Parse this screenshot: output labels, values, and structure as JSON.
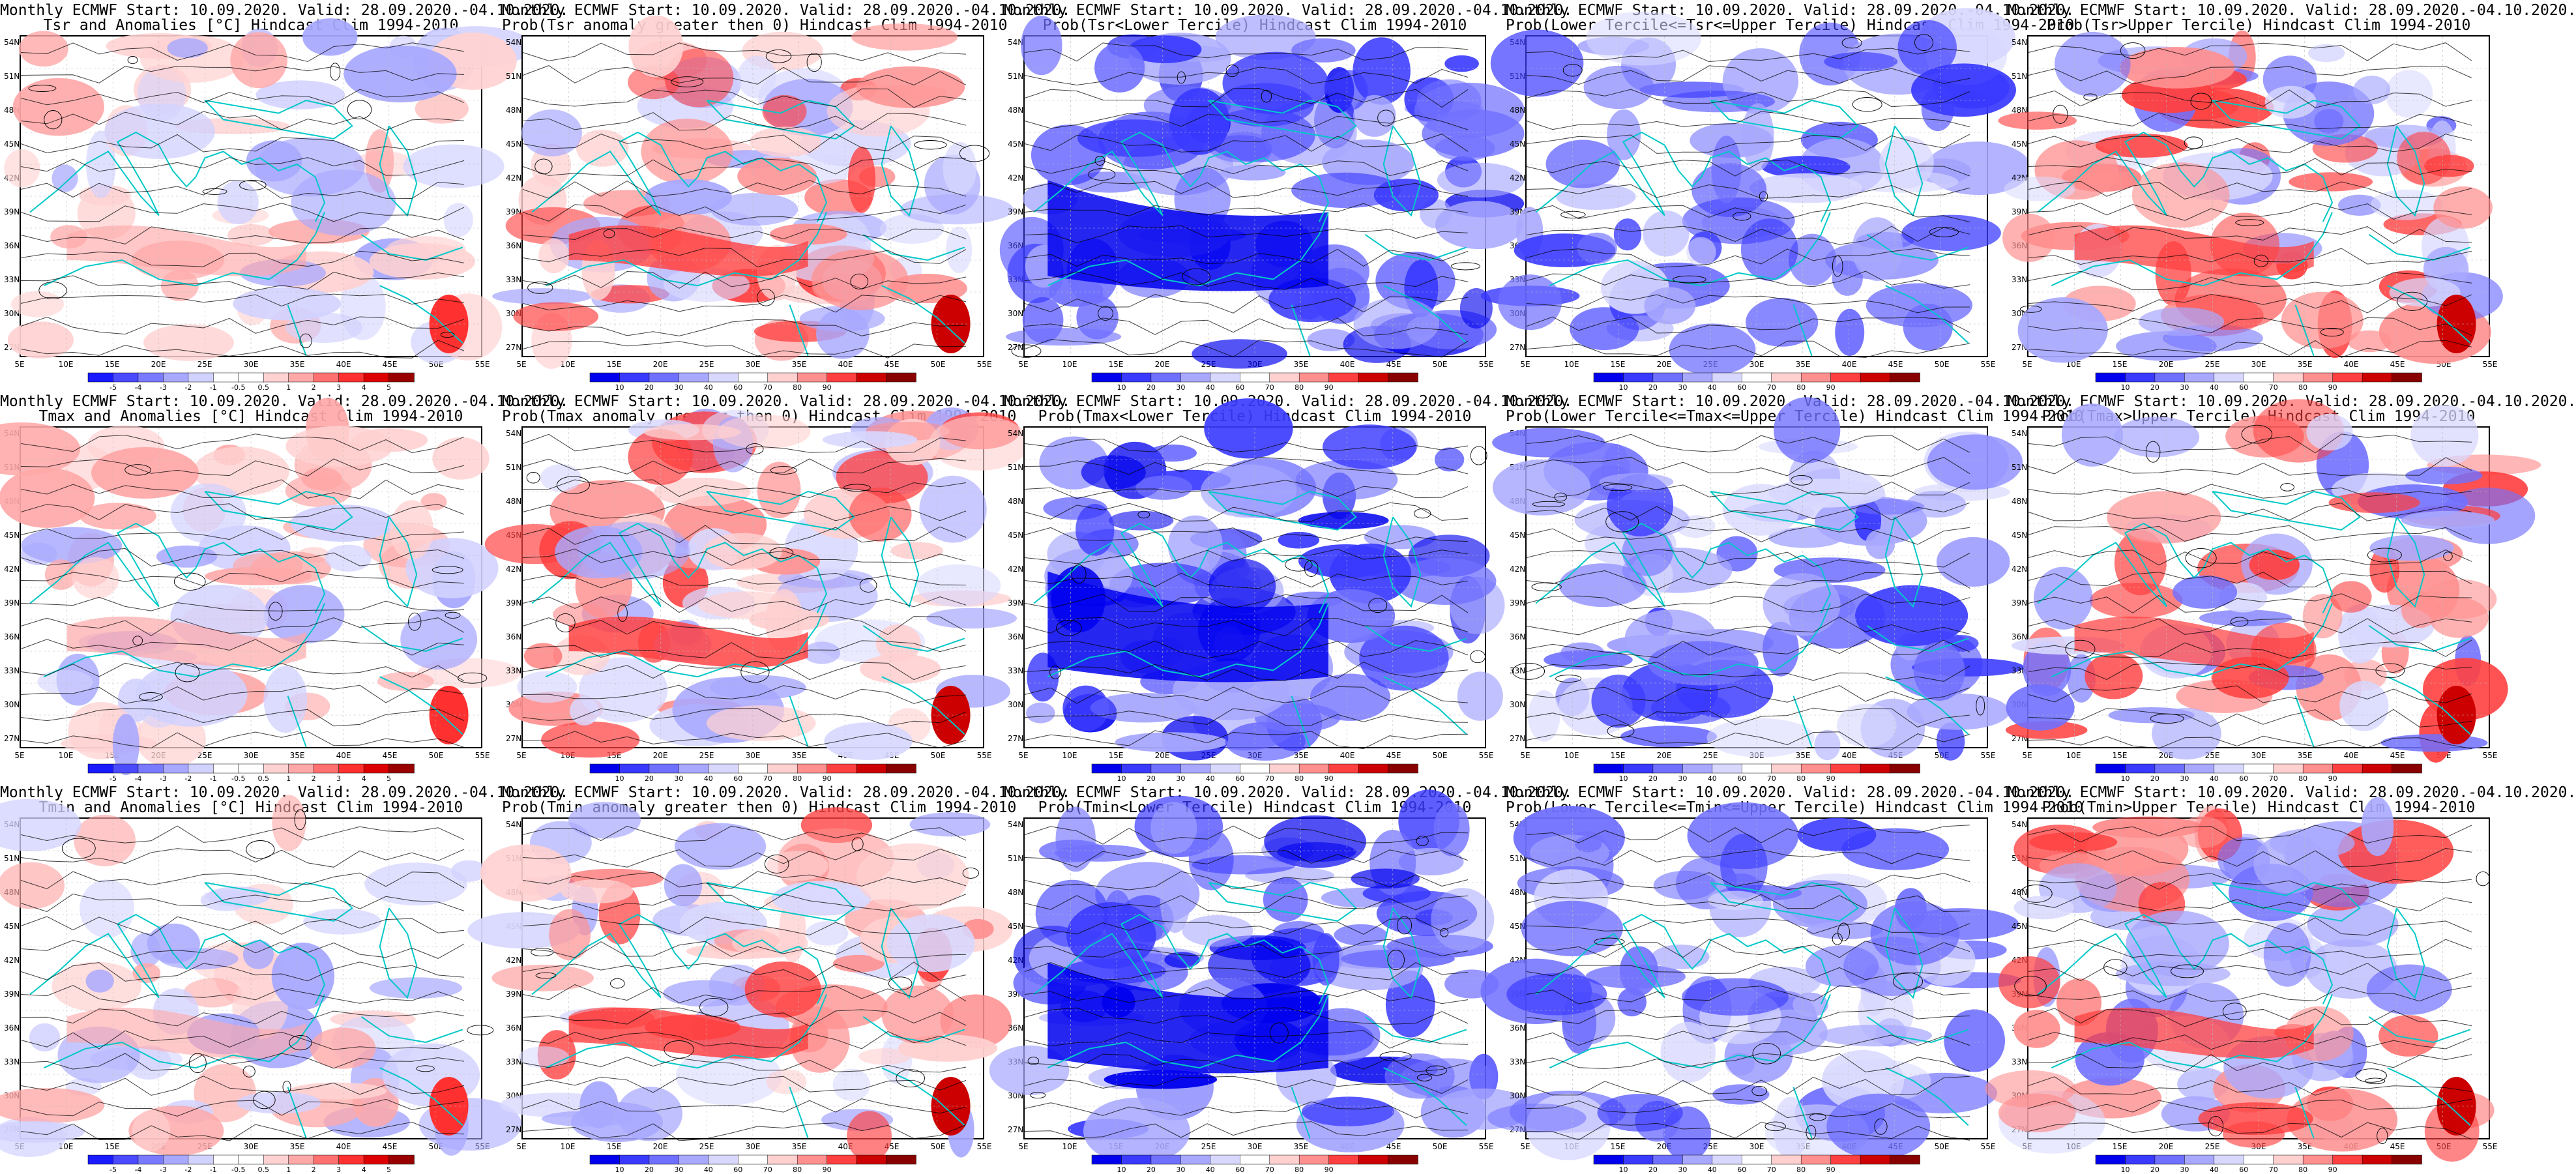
{
  "colors": {
    "anomaly": [
      "#1a1aff",
      "#4a4aff",
      "#7a7aff",
      "#a8a8ff",
      "#d2d2ff",
      "#ffffff",
      "#ffffff",
      "#ffd2d2",
      "#ffa8a8",
      "#ff7070",
      "#ff3030",
      "#dd0000",
      "#990000"
    ],
    "probability": [
      "#0000ee",
      "#3a3aff",
      "#7070ff",
      "#a8a8ff",
      "#d8d8ff",
      "#ffffff",
      "#ffd0d0",
      "#ff9090",
      "#ff4040",
      "#cc0000",
      "#880000"
    ],
    "coast": "#00c8c8",
    "contour": "#000000"
  },
  "axes": {
    "lat_labels": [
      "54N",
      "51N",
      "48N",
      "45N",
      "42N",
      "39N",
      "36N",
      "33N",
      "30N",
      "27N"
    ],
    "lon_labels": [
      "5E",
      "10E",
      "15E",
      "20E",
      "25E",
      "30E",
      "35E",
      "40E",
      "45E",
      "50E",
      "55E"
    ]
  },
  "colorbars": {
    "anomaly_ticks": [
      "-5",
      "-4",
      "-3",
      "-2",
      "-1",
      "-0.5",
      "0.5",
      "1",
      "2",
      "3",
      "4",
      "5"
    ],
    "prob_ticks": [
      "10",
      "20",
      "30",
      "40",
      "60",
      "70",
      "80",
      "90"
    ]
  },
  "panels": [
    {
      "title1": "Monthly ECMWF Start: 10.09.2020. Valid: 28.09.2020.-04.10.2020.",
      "title2": "Tsr and Anomalies [°C] Hindcast Clim 1994-2010",
      "kind": "anomaly",
      "level": 0.35
    },
    {
      "title1": "Monthly ECMWF Start: 10.09.2020. Valid: 28.09.2020.-04.10.2020.",
      "title2": "Prob(Tsr anomaly greater then 0) Hindcast Clim 1994-2010",
      "kind": "prob-warm",
      "level": 0.75
    },
    {
      "title1": "Monthly ECMWF Start: 10.09.2020. Valid: 28.09.2020.-04.10.2020.",
      "title2": "Prob(Tsr<Lower Tercile) Hindcast Clim 1994-2010",
      "kind": "prob-cold",
      "level": 0.85
    },
    {
      "title1": "Monthly ECMWF Start: 10.09.2020. Valid: 28.09.2020.-04.10.2020.",
      "title2": "Prob(Lower Tercile<=Tsr<=Upper Tercile) Hindcast Clim 1994-2010",
      "kind": "prob-mid",
      "level": 0.55
    },
    {
      "title1": "Monthly ECMWF Start: 10.09.2020. Valid: 28.09.2020.-04.10.2020.",
      "title2": "Prob(Tsr>Upper Tercile) Hindcast Clim 1994-2010",
      "kind": "prob-upper",
      "level": 0.6
    },
    {
      "title1": "Monthly ECMWF Start: 10.09.2020. Valid: 28.09.2020.-04.10.2020.",
      "title2": "Tmax and Anomalies [°C] Hindcast Clim 1994-2010",
      "kind": "anomaly",
      "level": 0.5
    },
    {
      "title1": "Monthly ECMWF Start: 10.09.2020. Valid: 28.09.2020.-04.10.2020.",
      "title2": "Prob(Tmax anomaly greater then 0) Hindcast Clim 1994-2010",
      "kind": "prob-warm",
      "level": 0.85
    },
    {
      "title1": "Monthly ECMWF Start: 10.09.2020. Valid: 28.09.2020.-04.10.2020.",
      "title2": "Prob(Tmax<Lower Tercile) Hindcast Clim 1994-2010",
      "kind": "prob-cold",
      "level": 0.8
    },
    {
      "title1": "Monthly ECMWF Start: 10.09.2020. Valid: 28.09.2020.-04.10.2020.",
      "title2": "Prob(Lower Tercile<=Tmax<=Upper Tercile) Hindcast Clim 1994-2010",
      "kind": "prob-mid",
      "level": 0.6
    },
    {
      "title1": "Monthly ECMWF Start: 10.09.2020. Valid: 28.09.2020.-04.10.2020.",
      "title2": "Prob(Tmax>Upper Tercile) Hindcast Clim 1994-2010",
      "kind": "prob-upper",
      "level": 0.55
    },
    {
      "title1": "Monthly ECMWF Start: 10.09.2020. Valid: 28.09.2020.-04.10.2020.",
      "title2": "Tmin and Anomalies [°C] Hindcast Clim 1994-2010",
      "kind": "anomaly",
      "level": 0.3
    },
    {
      "title1": "Monthly ECMWF Start: 10.09.2020. Valid: 28.09.2020.-04.10.2020.",
      "title2": "Prob(Tmin anomaly greater then 0) Hindcast Clim 1994-2010",
      "kind": "prob-warm",
      "level": 0.8
    },
    {
      "title1": "Monthly ECMWF Start: 10.09.2020. Valid: 28.09.2020.-04.10.2020.",
      "title2": "Prob(Tmin<Lower Tercile) Hindcast Clim 1994-2010",
      "kind": "prob-cold",
      "level": 0.9
    },
    {
      "title1": "Monthly ECMWF Start: 10.09.2020. Valid: 28.09.2020.-04.10.2020.",
      "title2": "Prob(Lower Tercile<=Tmin<=Upper Tercile) Hindcast Clim 1994-2010",
      "kind": "prob-mid",
      "level": 0.6
    },
    {
      "title1": "Monthly ECMWF Start: 10.09.2020. Valid: 28.09.2020.-04.10.2020.",
      "title2": "Prob(Tmin>Upper Tercile) Hindcast Clim 1994-2010",
      "kind": "prob-upper",
      "level": 0.6
    }
  ]
}
